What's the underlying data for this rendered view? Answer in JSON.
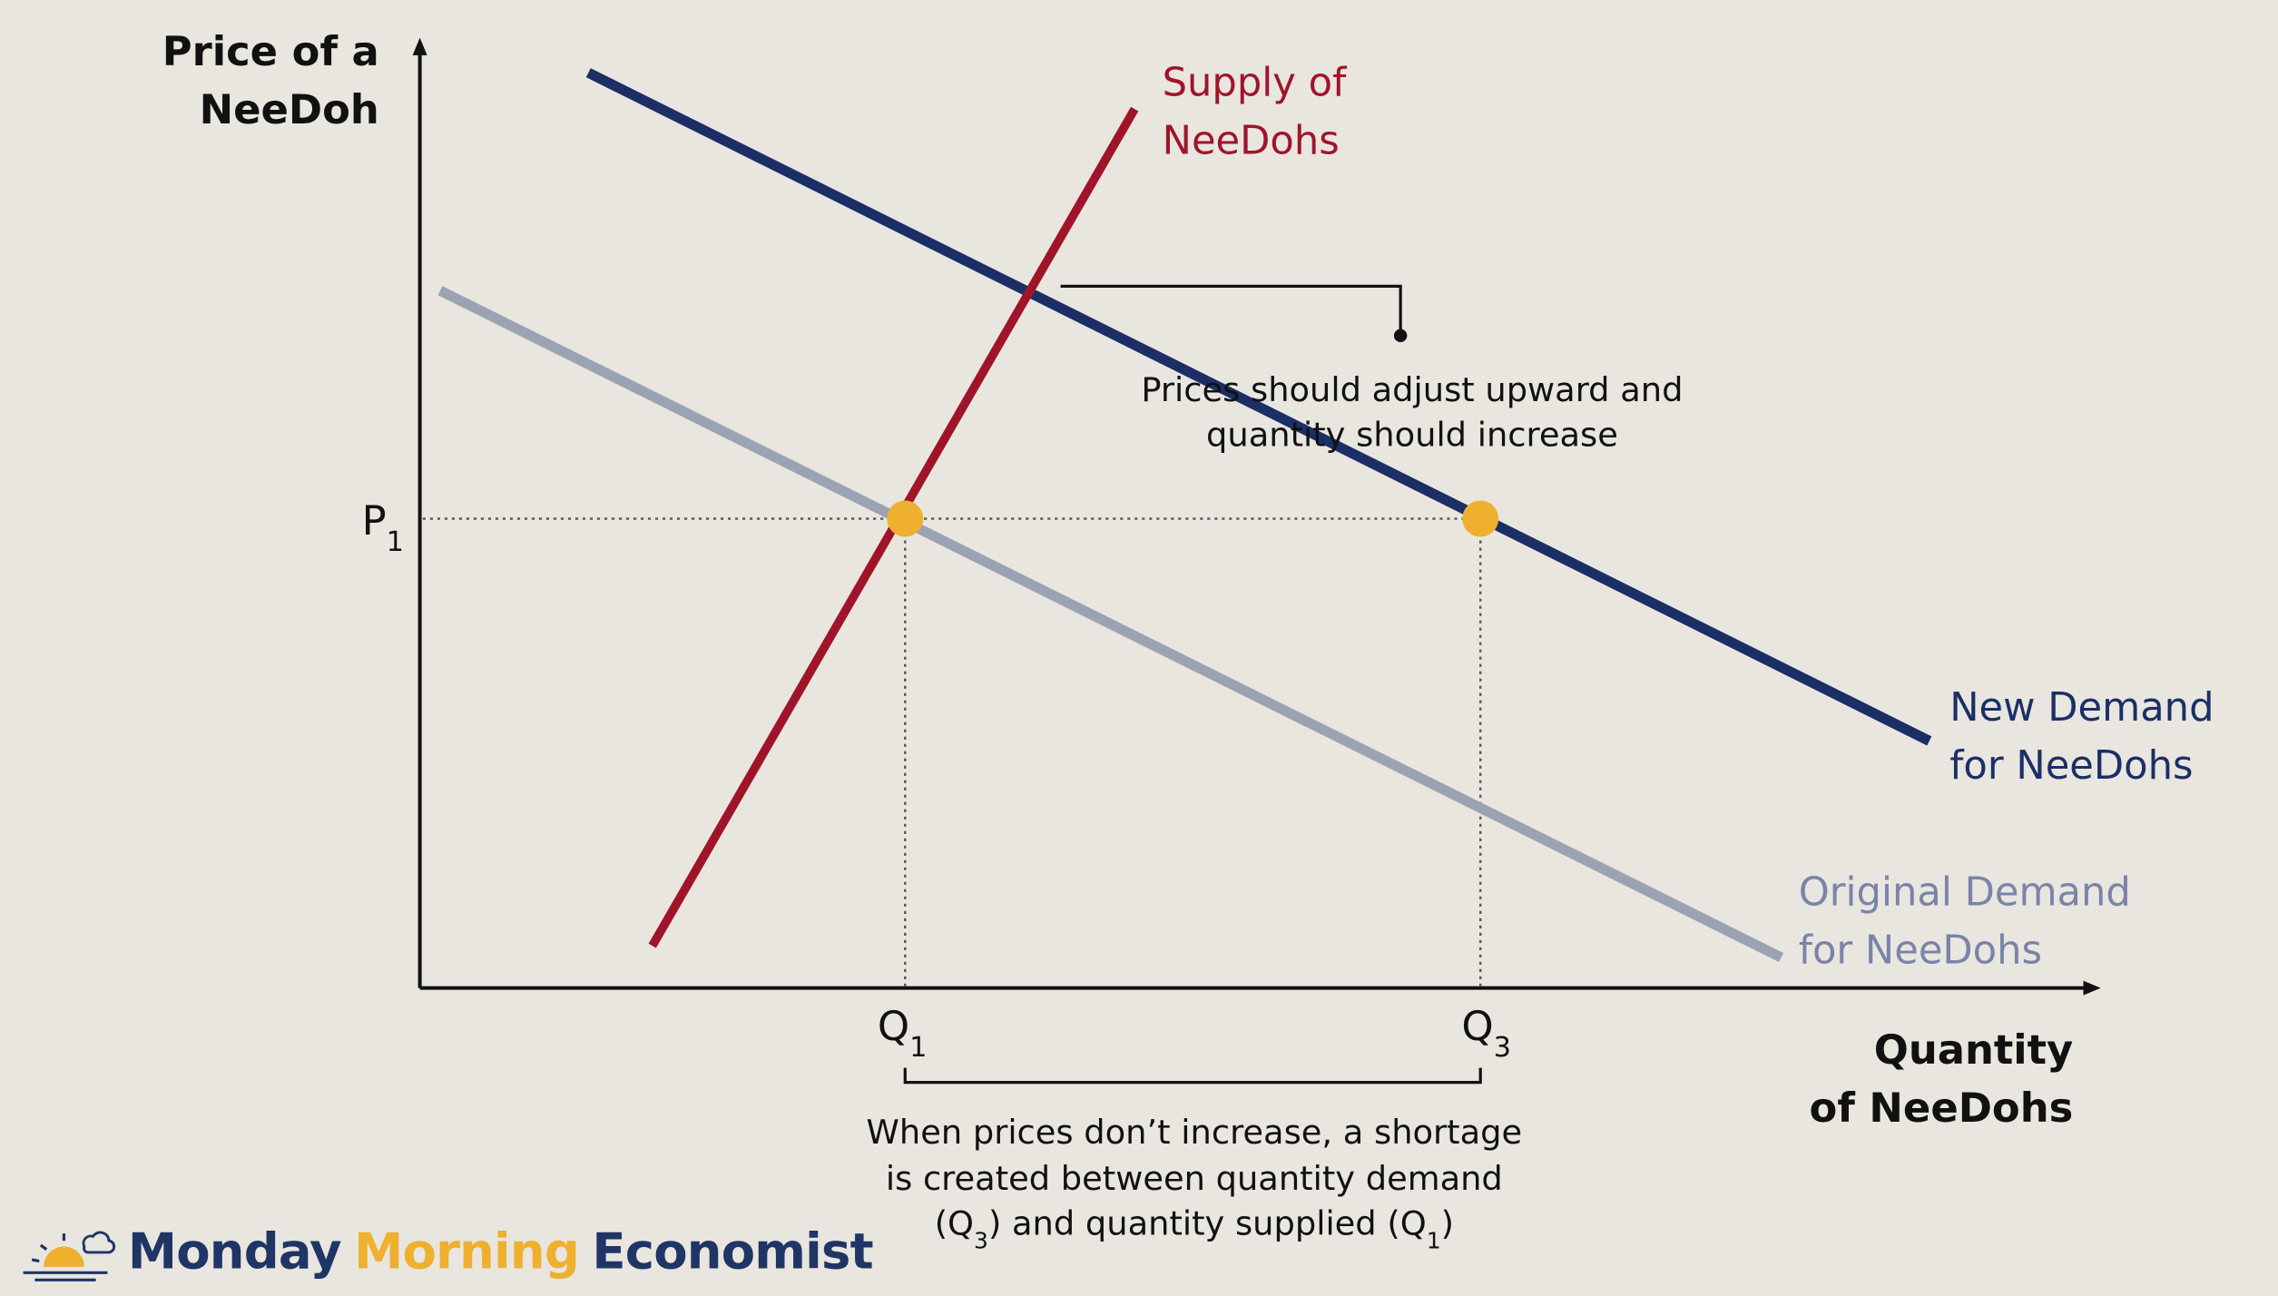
{
  "axes": {
    "y_title": [
      "Price of a",
      "NeeDoh"
    ],
    "x_title": [
      "Quantity",
      "of NeeDohs"
    ],
    "p1": {
      "letter": "P",
      "subscript": "1"
    },
    "q1": {
      "letter": "Q",
      "subscript": "1"
    },
    "q3": {
      "letter": "Q",
      "subscript": "3"
    }
  },
  "curves": {
    "supply": [
      "Supply of",
      "NeeDohs"
    ],
    "new_demand": [
      "New Demand",
      "for NeeDohs"
    ],
    "original_demand": [
      "Original Demand",
      "for NeeDohs"
    ]
  },
  "annotations": {
    "price_adjust": [
      "Prices should adjust upward and",
      "quantity should increase"
    ],
    "shortage": {
      "line1": "When prices don’t increase, a shortage",
      "line2": "is created between quantity demand",
      "line3": [
        "(Q",
        "3",
        ") and quantity supplied (Q",
        "1",
        ")"
      ]
    }
  },
  "logo": [
    "Monday",
    "Morning",
    "Economist"
  ]
}
